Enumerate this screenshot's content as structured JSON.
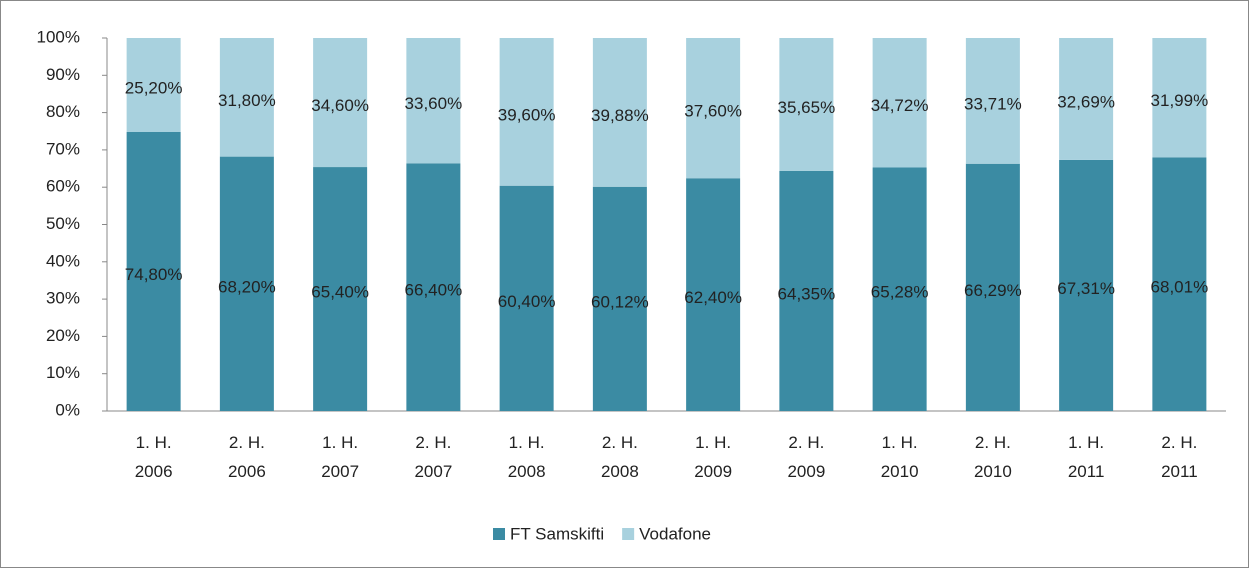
{
  "chart_data": {
    "type": "stacked_bar",
    "categories": [
      "1. H. 2006",
      "2. H. 2006",
      "1. H. 2007",
      "2. H. 2007",
      "1. H. 2008",
      "2. H. 2008",
      "1. H. 2009",
      "2. H. 2009",
      "1. H. 2010",
      "2. H. 2010",
      "1. H. 2011",
      "2. H. 2011"
    ],
    "series": [
      {
        "name": "FT Samskifti",
        "color": "#3b8ba3",
        "values": [
          74.8,
          68.2,
          65.4,
          66.4,
          60.4,
          60.12,
          62.4,
          64.35,
          65.28,
          66.29,
          67.31,
          68.01
        ],
        "value_labels": [
          "74,80%",
          "68,20%",
          "65,40%",
          "66,40%",
          "60,40%",
          "60,12%",
          "62,40%",
          "64,35%",
          "65,28%",
          "66,29%",
          "67,31%",
          "68,01%"
        ]
      },
      {
        "name": "Vodafone",
        "color": "#a8d1de",
        "values": [
          25.2,
          31.8,
          34.6,
          33.6,
          39.6,
          39.88,
          37.6,
          35.65,
          34.72,
          33.71,
          32.69,
          31.99
        ],
        "value_labels": [
          "25,20%",
          "31,80%",
          "34,60%",
          "33,60%",
          "39,60%",
          "39,88%",
          "37,60%",
          "35,65%",
          "34,72%",
          "33,71%",
          "32,69%",
          "31,99%"
        ]
      }
    ],
    "ylim": [
      0,
      100
    ],
    "yticks": [
      {
        "value": 0,
        "label": "0%"
      },
      {
        "value": 10,
        "label": "10%"
      },
      {
        "value": 20,
        "label": "20%"
      },
      {
        "value": 30,
        "label": "30%"
      },
      {
        "value": 40,
        "label": "40%"
      },
      {
        "value": 50,
        "label": "50%"
      },
      {
        "value": 60,
        "label": "60%"
      },
      {
        "value": 70,
        "label": "70%"
      },
      {
        "value": 80,
        "label": "80%"
      },
      {
        "value": 90,
        "label": "90%"
      },
      {
        "value": 100,
        "label": "100%"
      }
    ],
    "legend": "bottom",
    "grid": false
  }
}
